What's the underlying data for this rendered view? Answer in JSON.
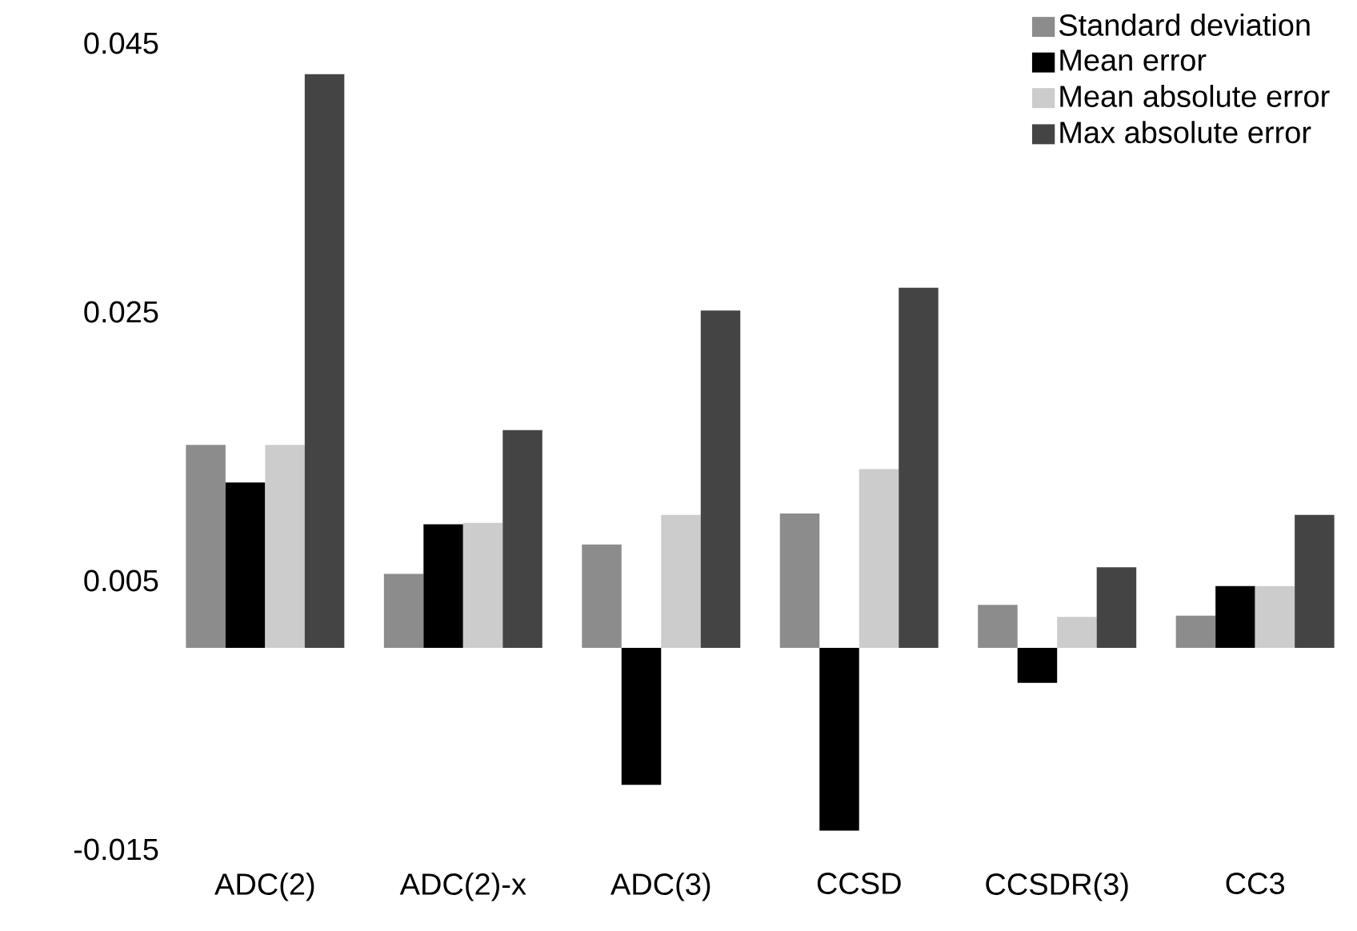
{
  "chart_data": {
    "type": "bar",
    "categories": [
      "ADC(2)",
      "ADC(2)-x",
      "ADC(3)",
      "CCSD",
      "CCSDR(3)",
      "CC3"
    ],
    "series": [
      {
        "name": "Standard deviation",
        "color": "#8c8c8c",
        "values": [
          0.0151,
          0.0055,
          0.0077,
          0.01,
          0.0032,
          0.0024
        ]
      },
      {
        "name": "Mean error",
        "color": "#000000",
        "values": [
          0.0123,
          0.0092,
          -0.0102,
          -0.0136,
          -0.0026,
          0.0046
        ]
      },
      {
        "name": "Mean absolute error",
        "color": "#cccccc",
        "values": [
          0.0151,
          0.0093,
          0.0099,
          0.0133,
          0.0023,
          0.0046
        ]
      },
      {
        "name": "Max absolute error",
        "color": "#444444",
        "values": [
          0.0427,
          0.0162,
          0.0251,
          0.0268,
          0.006,
          0.0099
        ]
      }
    ],
    "ylim": [
      -0.015,
      0.045
    ],
    "yticks": [
      -0.015,
      0.005,
      0.025,
      0.045
    ],
    "grid": false,
    "legend": "top right"
  }
}
